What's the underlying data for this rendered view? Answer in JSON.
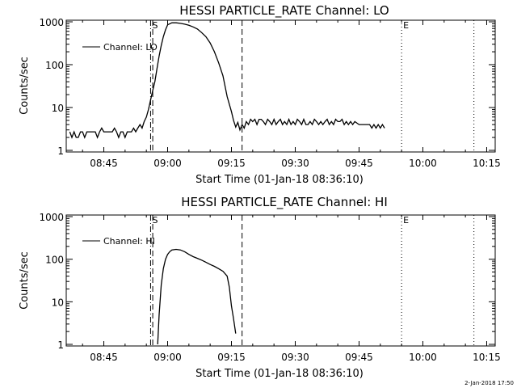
{
  "stamp": "2-Jan-2018 17:50",
  "chart_data": [
    {
      "type": "line",
      "title": "HESSI PARTICLE_RATE Channel: LO",
      "xlabel": "Start Time (01-Jan-18 08:36:10)",
      "ylabel": "Counts/sec",
      "yscale": "log",
      "xlim": [
        "08:36:10",
        "10:17:00"
      ],
      "ylim": [
        1,
        1000
      ],
      "x_ticks": [
        "08:45",
        "09:00",
        "09:15",
        "09:30",
        "09:45",
        "10:00",
        "10:15"
      ],
      "y_ticks": [
        "1",
        "10",
        "100",
        "1000"
      ],
      "legend": {
        "label": "Channel: LO",
        "placement": "top-left"
      },
      "markers": [
        {
          "label": "S",
          "time": "08:56:00",
          "style": "dash-dot"
        },
        {
          "label": "",
          "time": "08:56:30",
          "style": "dashed"
        },
        {
          "label": "",
          "time": "09:17:30",
          "style": "dashed"
        },
        {
          "label": "E",
          "time": "09:55:00",
          "style": "dotted"
        },
        {
          "label": "",
          "time": "10:12:00",
          "style": "dotted"
        }
      ],
      "series": [
        {
          "name": "Channel: LO",
          "x": [
            "08:37:00",
            "08:37:30",
            "08:38:00",
            "08:38:30",
            "08:39:00",
            "08:39:30",
            "08:40:00",
            "08:40:30",
            "08:41:00",
            "08:41:30",
            "08:42:00",
            "08:42:30",
            "08:43:00",
            "08:43:30",
            "08:44:00",
            "08:44:30",
            "08:45:00",
            "08:45:30",
            "08:46:00",
            "08:46:30",
            "08:47:00",
            "08:47:30",
            "08:48:00",
            "08:48:30",
            "08:49:00",
            "08:49:30",
            "08:50:00",
            "08:50:30",
            "08:51:00",
            "08:51:30",
            "08:52:00",
            "08:52:30",
            "08:53:00",
            "08:53:30",
            "08:54:00",
            "08:54:30",
            "08:55:00",
            "08:55:30",
            "08:56:00",
            "08:56:30",
            "08:57:00",
            "08:57:30",
            "08:58:00",
            "08:58:30",
            "08:59:00",
            "08:59:30",
            "09:00:00",
            "09:01:00",
            "09:02:00",
            "09:03:00",
            "09:04:00",
            "09:05:00",
            "09:06:00",
            "09:07:00",
            "09:08:00",
            "09:09:00",
            "09:10:00",
            "09:11:00",
            "09:12:00",
            "09:13:00",
            "09:14:00",
            "09:15:00",
            "09:15:30",
            "09:16:00",
            "09:16:30",
            "09:17:00",
            "09:17:30",
            "09:18:00",
            "09:18:30",
            "09:19:00",
            "09:19:30",
            "09:20:00",
            "09:20:30",
            "09:21:00",
            "09:21:30",
            "09:22:00",
            "09:22:30",
            "09:23:00",
            "09:23:30",
            "09:24:00",
            "09:24:30",
            "09:25:00",
            "09:25:30",
            "09:26:00",
            "09:26:30",
            "09:27:00",
            "09:27:30",
            "09:28:00",
            "09:28:30",
            "09:29:00",
            "09:29:30",
            "09:30:00",
            "09:30:30",
            "09:31:00",
            "09:31:30",
            "09:32:00",
            "09:32:30",
            "09:33:00",
            "09:33:30",
            "09:34:00",
            "09:34:30",
            "09:35:00",
            "09:35:30",
            "09:36:00",
            "09:36:30",
            "09:37:00",
            "09:37:30",
            "09:38:00",
            "09:38:30",
            "09:39:00",
            "09:39:30",
            "09:40:00",
            "09:40:30",
            "09:41:00",
            "09:41:30",
            "09:42:00",
            "09:42:30",
            "09:43:00",
            "09:43:30",
            "09:44:00",
            "09:45:00",
            "09:46:00",
            "09:47:00",
            "09:47:30",
            "09:48:00",
            "09:48:30",
            "09:49:00",
            "09:49:30",
            "09:50:00",
            "09:50:30",
            "09:51:00"
          ],
          "y": [
            2.7,
            2.0,
            2.7,
            2.0,
            2.0,
            2.7,
            2.7,
            2.0,
            2.7,
            2.7,
            2.7,
            2.7,
            2.7,
            2.0,
            2.7,
            3.3,
            2.7,
            2.7,
            2.7,
            2.7,
            2.7,
            3.3,
            2.7,
            2.0,
            2.7,
            2.7,
            2.0,
            2.7,
            2.7,
            2.7,
            3.3,
            2.7,
            3.3,
            4.0,
            3.3,
            4.7,
            6.0,
            9.0,
            15,
            25,
            40,
            80,
            160,
            280,
            450,
            650,
            850,
            950,
            950,
            920,
            880,
            830,
            760,
            680,
            560,
            450,
            320,
            200,
            110,
            55,
            18,
            8,
            5,
            3.5,
            4.5,
            3.0,
            4.0,
            3.3,
            4.7,
            4.0,
            5.3,
            4.7,
            5.3,
            4.0,
            5.3,
            5.3,
            4.7,
            4.0,
            5.3,
            4.7,
            4.0,
            5.3,
            4.0,
            4.7,
            5.3,
            4.0,
            4.7,
            4.0,
            5.3,
            4.0,
            4.7,
            4.0,
            5.3,
            4.7,
            4.0,
            5.3,
            4.0,
            4.0,
            4.7,
            4.0,
            5.3,
            4.7,
            4.0,
            4.7,
            4.0,
            4.7,
            5.3,
            4.0,
            4.7,
            4.0,
            5.3,
            4.7,
            4.7,
            5.3,
            4.0,
            4.7,
            4.0,
            4.7,
            4.0,
            4.7,
            4.0,
            4.0,
            4.0,
            4.0,
            3.3,
            4.0,
            3.3,
            4.0,
            3.3,
            4.0,
            3.3
          ]
        }
      ]
    },
    {
      "type": "line",
      "title": "HESSI PARTICLE_RATE Channel: HI",
      "xlabel": "Start Time (01-Jan-18 08:36:10)",
      "ylabel": "Counts/sec",
      "yscale": "log",
      "xlim": [
        "08:36:10",
        "10:17:00"
      ],
      "ylim": [
        1,
        1000
      ],
      "x_ticks": [
        "08:45",
        "09:00",
        "09:15",
        "09:30",
        "09:45",
        "10:00",
        "10:15"
      ],
      "y_ticks": [
        "1",
        "10",
        "100",
        "1000"
      ],
      "legend": {
        "label": "Channel: HI",
        "placement": "top-left"
      },
      "markers": [
        {
          "label": "S",
          "time": "08:56:00",
          "style": "dash-dot"
        },
        {
          "label": "",
          "time": "08:56:30",
          "style": "dashed"
        },
        {
          "label": "",
          "time": "09:17:30",
          "style": "dashed"
        },
        {
          "label": "E",
          "time": "09:55:00",
          "style": "dotted"
        },
        {
          "label": "",
          "time": "10:12:00",
          "style": "dotted"
        }
      ],
      "series": [
        {
          "name": "Channel: HI",
          "x": [
            "08:57:40",
            "08:58:00",
            "08:58:30",
            "08:59:00",
            "08:59:30",
            "09:00:00",
            "09:00:30",
            "09:01:00",
            "09:02:00",
            "09:03:00",
            "09:04:00",
            "09:05:00",
            "09:06:00",
            "09:07:00",
            "09:08:00",
            "09:09:00",
            "09:10:00",
            "09:11:00",
            "09:12:00",
            "09:13:00",
            "09:14:00",
            "09:14:30",
            "09:15:00",
            "09:15:30",
            "09:16:00"
          ],
          "y": [
            1.0,
            5,
            25,
            60,
            100,
            130,
            150,
            165,
            170,
            165,
            150,
            130,
            115,
            105,
            95,
            85,
            75,
            68,
            60,
            52,
            40,
            22,
            8,
            4,
            1.8
          ]
        }
      ]
    }
  ]
}
